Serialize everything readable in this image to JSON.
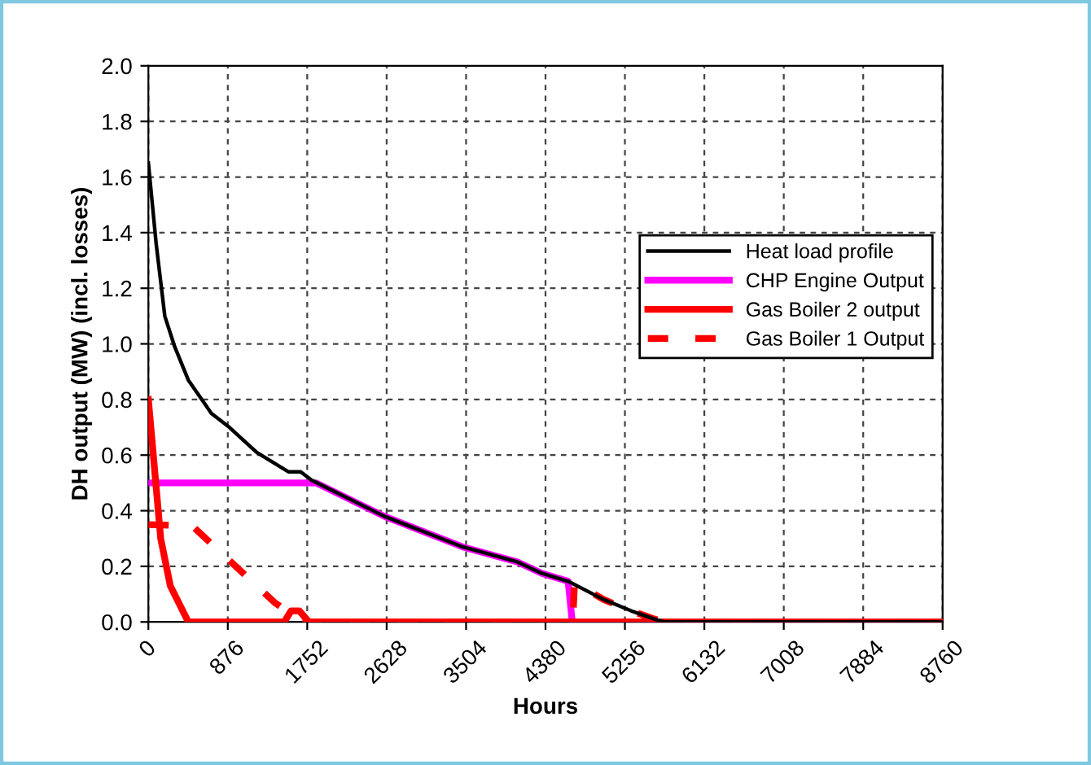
{
  "chart_data": {
    "type": "line",
    "xlabel": "Hours",
    "ylabel": "DH output (MW) (incl. losses)",
    "xlim": [
      0,
      8760
    ],
    "ylim": [
      0,
      2.0
    ],
    "xticks": [
      0,
      876,
      1752,
      2628,
      3504,
      4380,
      5256,
      6132,
      7008,
      7884,
      8760
    ],
    "yticks": [
      {
        "value": 0,
        "label": "0.0"
      },
      {
        "value": 0.2,
        "label": "0.2"
      },
      {
        "value": 0.4,
        "label": "0.4"
      },
      {
        "value": 0.6,
        "label": "0.6"
      },
      {
        "value": 0.8,
        "label": "0.8"
      },
      {
        "value": 1.0,
        "label": "1.0"
      },
      {
        "value": 1.2,
        "label": "1.2"
      },
      {
        "value": 1.4,
        "label": "1.4"
      },
      {
        "value": 1.6,
        "label": "1.6"
      },
      {
        "value": 1.8,
        "label": "1.8"
      },
      {
        "value": 2.0,
        "label": "2.0"
      }
    ],
    "grid": true,
    "legend": "right",
    "marker": "none",
    "series": [
      {
        "name": "Heat load profile",
        "color": "#000000",
        "line_style": "solid",
        "x": [
          0,
          86,
          181,
          290,
          440,
          695,
          893,
          1195,
          1543,
          1680,
          1800,
          2602,
          3465,
          4070,
          4340,
          4630,
          5025,
          5325,
          5585,
          5690,
          8760
        ],
        "values": [
          1.65,
          1.36,
          1.1,
          0.99,
          0.87,
          0.75,
          0.7,
          0.61,
          0.54,
          0.54,
          0.51,
          0.38,
          0.27,
          0.216,
          0.175,
          0.146,
          0.08,
          0.04,
          0.01,
          0,
          0
        ]
      },
      {
        "name": "CHP Engine Output",
        "color": "#ff00ff",
        "line_style": "solid",
        "x": [
          0,
          1850,
          2602,
          3465,
          4070,
          4340,
          4630,
          4675,
          8760
        ],
        "values": [
          0.5,
          0.5,
          0.38,
          0.27,
          0.216,
          0.175,
          0.146,
          0,
          0
        ]
      },
      {
        "name": "Gas Boiler 2 output",
        "color": "#ff0000",
        "line_style": "solid",
        "x": [
          0,
          136,
          242,
          440,
          1500,
          1573,
          1665,
          1770,
          8760
        ],
        "values": [
          0.8,
          0.3,
          0.13,
          0,
          0,
          0.04,
          0.04,
          0,
          0
        ]
      },
      {
        "name": "Gas Boiler 1 Output",
        "color": "#ff0000",
        "line_style": "dashed",
        "x": [
          0,
          485,
          1392,
          1700,
          4680,
          4700,
          5025,
          5325,
          5585,
          5690,
          8760
        ],
        "values": [
          0.35,
          0.345,
          0.07,
          0,
          0,
          0.14,
          0.08,
          0.04,
          0.01,
          0,
          0
        ]
      }
    ]
  }
}
